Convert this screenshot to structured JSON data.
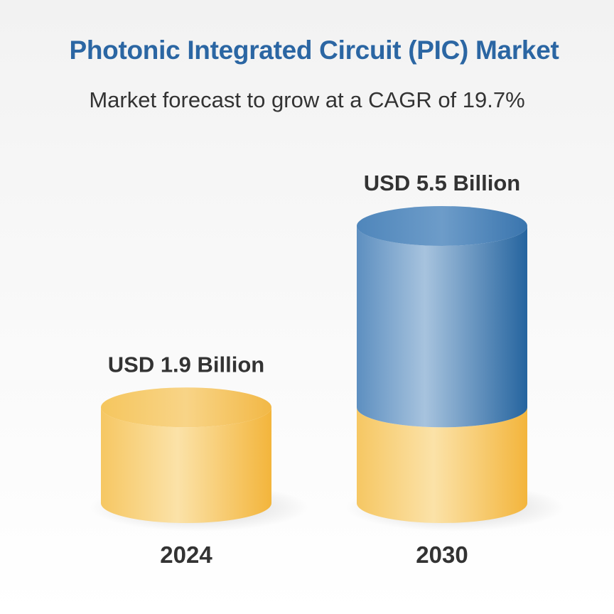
{
  "chart_data": {
    "type": "bar",
    "title": "Photonic Integrated Circuit (PIC) Market",
    "subtitle": "Market forecast to grow at a CAGR of 19.7%",
    "categories": [
      "2024",
      "2030"
    ],
    "values": [
      1.9,
      5.5
    ],
    "data_labels": [
      "USD 1.9 Billion",
      "USD 5.5 Billion"
    ],
    "xlabel": "",
    "ylabel": "",
    "ylim": [
      0,
      5.5
    ],
    "grid": false,
    "colors": {
      "base": "#f5b944",
      "growth": "#2d6da6",
      "title": "#2b66a3"
    }
  }
}
